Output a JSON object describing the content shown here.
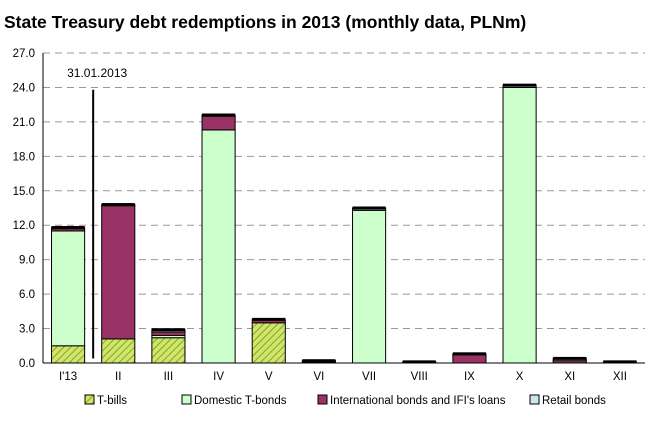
{
  "chart_data": {
    "type": "bar",
    "stacked": true,
    "title": "State Treasury debt redemptions in 2013 (monthly data, PLNm)",
    "categories": [
      "I'13",
      "II",
      "III",
      "IV",
      "V",
      "VI",
      "VII",
      "VIII",
      "IX",
      "X",
      "XI",
      "XII"
    ],
    "ylim": [
      0,
      27
    ],
    "yticks": [
      "0.0",
      "3.0",
      "6.0",
      "9.0",
      "12.0",
      "15.0",
      "18.0",
      "21.0",
      "24.0",
      "27.0"
    ],
    "grid": true,
    "legend_position": "bottom",
    "series": [
      {
        "name": "T-bills",
        "color": "#c9e86a",
        "pattern": "hatch",
        "values": [
          1.5,
          2.1,
          2.2,
          0,
          3.5,
          0,
          0,
          0,
          0,
          0,
          0,
          0
        ]
      },
      {
        "name": "Domestic T-bonds",
        "color": "#ccffcc",
        "values": [
          10.0,
          0,
          0.2,
          20.3,
          0,
          0,
          13.3,
          0,
          0,
          24.0,
          0,
          0
        ]
      },
      {
        "name": "International bonds and IFI's loans",
        "color": "#993366",
        "values": [
          0.2,
          11.6,
          0.3,
          1.2,
          0.3,
          0.1,
          0,
          0,
          0.7,
          0,
          0.2,
          0
        ]
      },
      {
        "name": "Retail bonds",
        "color": "#cce6f0",
        "values": [
          0.1,
          0.1,
          0.2,
          0.1,
          0,
          0.1,
          0.2,
          0.1,
          0.1,
          0.2,
          0.2,
          0.1
        ]
      }
    ],
    "annotation": {
      "text": "31.01.2013",
      "category_index": 0
    }
  }
}
